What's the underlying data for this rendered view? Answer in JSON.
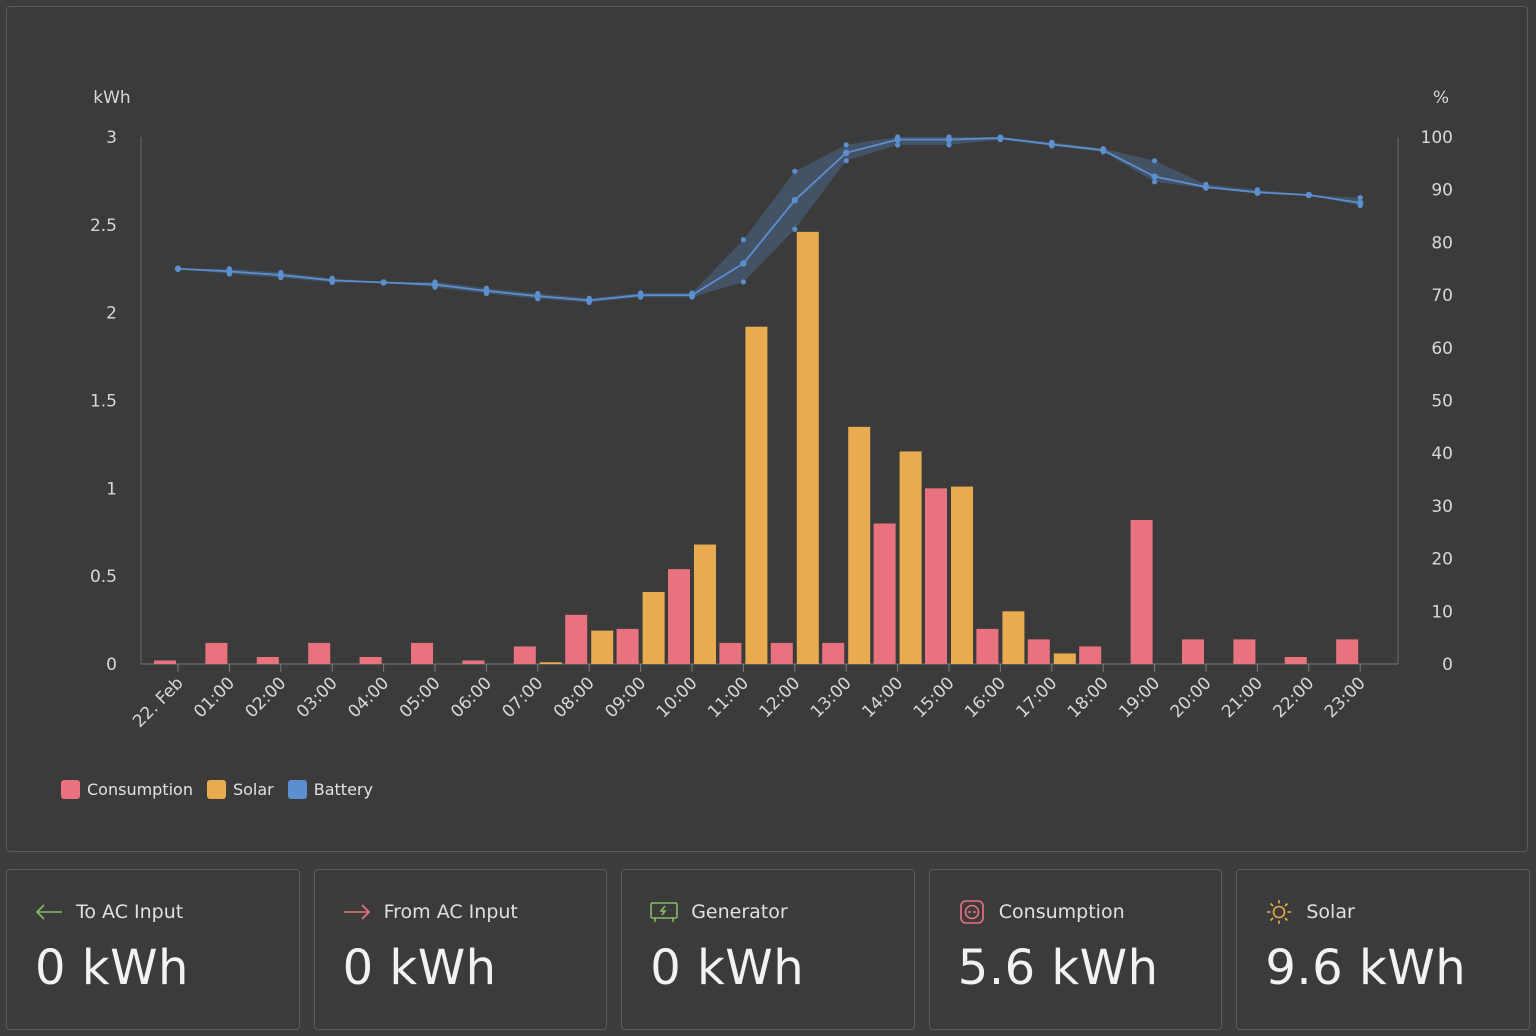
{
  "chart_data": {
    "type": "bar",
    "categories": [
      "22. Feb",
      "01:00",
      "02:00",
      "03:00",
      "04:00",
      "05:00",
      "06:00",
      "07:00",
      "08:00",
      "09:00",
      "10:00",
      "11:00",
      "12:00",
      "13:00",
      "14:00",
      "15:00",
      "16:00",
      "17:00",
      "18:00",
      "19:00",
      "20:00",
      "21:00",
      "22:00",
      "23:00"
    ],
    "ylabel_left": "kWh",
    "ylabel_right": "%",
    "ylim_left": [
      0,
      3
    ],
    "ylim_right": [
      0,
      100
    ],
    "yticks_left": [
      "0",
      "0.5",
      "1",
      "1.5",
      "2",
      "2.5",
      "3"
    ],
    "yticks_right": [
      "0",
      "10",
      "20",
      "30",
      "40",
      "50",
      "60",
      "70",
      "80",
      "90",
      "100"
    ],
    "grid": false,
    "legend_position": "bottom-left",
    "series": [
      {
        "name": "Consumption",
        "color": "#e8737e",
        "axis": "left",
        "values": [
          0.02,
          0.12,
          0.04,
          0.12,
          0.04,
          0.12,
          0.02,
          0.1,
          0.28,
          0.2,
          0.54,
          0.12,
          0.12,
          0.12,
          0.8,
          1.0,
          0.2,
          0.14,
          0.1,
          0.82,
          0.14,
          0.14,
          0.04,
          0.14
        ]
      },
      {
        "name": "Solar",
        "color": "#e8ab50",
        "axis": "left",
        "values": [
          0,
          0,
          0,
          0,
          0,
          0,
          0,
          0.01,
          0.19,
          0.41,
          0.68,
          1.92,
          2.46,
          1.35,
          1.21,
          1.01,
          0.3,
          0.06,
          0,
          0,
          0,
          0,
          0,
          0
        ]
      },
      {
        "name": "Battery",
        "color": "#5b8fd0",
        "axis": "right",
        "values": [
          75,
          74.5,
          73.8,
          72.8,
          72.4,
          72,
          70.8,
          69.8,
          69,
          70,
          70,
          76,
          88,
          97,
          99.5,
          99.5,
          99.8,
          98.6,
          97.5,
          92.5,
          90.5,
          89.5,
          89,
          87.5
        ],
        "min": [
          75,
          74,
          73.3,
          72.4,
          72.4,
          71.5,
          70.3,
          69.3,
          68.6,
          69.6,
          69.6,
          72.5,
          82.5,
          95.5,
          98.5,
          98.5,
          99.5,
          98.3,
          97.2,
          91.5,
          90.3,
          89.3,
          89,
          87
        ],
        "max": [
          75,
          75,
          74.3,
          73.2,
          72.4,
          72.5,
          71.3,
          70.3,
          69.4,
          70.4,
          70.4,
          80.5,
          93.5,
          98.5,
          100,
          100,
          100,
          99,
          97.8,
          95.5,
          91,
          90,
          89,
          88.5
        ]
      }
    ]
  },
  "cards": [
    {
      "icon": "arrow-left-icon",
      "label": "To AC Input",
      "value": "0 kWh",
      "icon_color": "#86b96a"
    },
    {
      "icon": "arrow-right-icon",
      "label": "From AC Input",
      "value": "0 kWh",
      "icon_color": "#e8737e"
    },
    {
      "icon": "generator-icon",
      "label": "Generator",
      "value": "0 kWh",
      "icon_color": "#86b96a"
    },
    {
      "icon": "outlet-icon",
      "label": "Consumption",
      "value": "5.6 kWh",
      "icon_color": "#e8737e"
    },
    {
      "icon": "sun-icon",
      "label": "Solar",
      "value": "9.6 kWh",
      "icon_color": "#e8ab50"
    }
  ]
}
